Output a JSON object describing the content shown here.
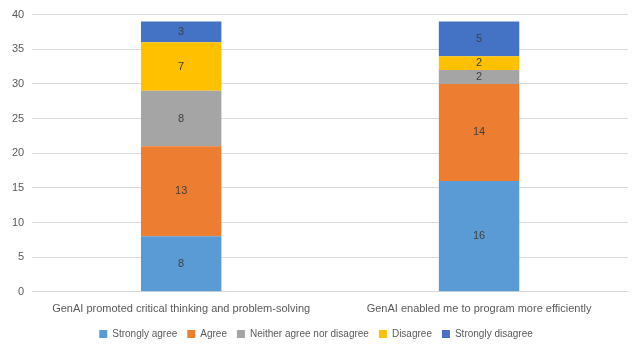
{
  "chart_data": {
    "type": "bar",
    "categories": [
      "GenAI promoted critical thinking and problem-solving",
      "GenAI enabled me to program more efficiently"
    ],
    "series": [
      {
        "name": "Strongly agree",
        "color": "#5b9bd5",
        "values": [
          8,
          16
        ]
      },
      {
        "name": "Agree",
        "color": "#ed7d31",
        "values": [
          13,
          14
        ]
      },
      {
        "name": "Neither agree nor disagree",
        "color": "#a5a5a5",
        "values": [
          8,
          2
        ]
      },
      {
        "name": "Disagree",
        "color": "#ffc000",
        "values": [
          7,
          2
        ]
      },
      {
        "name": "Strongly disagree",
        "color": "#4472c4",
        "values": [
          3,
          5
        ]
      }
    ],
    "ylim": [
      0,
      40
    ],
    "yticks": [
      0,
      5,
      10,
      15,
      20,
      25,
      30,
      35,
      40
    ],
    "grid": true,
    "stacked": true,
    "data_labels": true,
    "legend": "bottom"
  }
}
